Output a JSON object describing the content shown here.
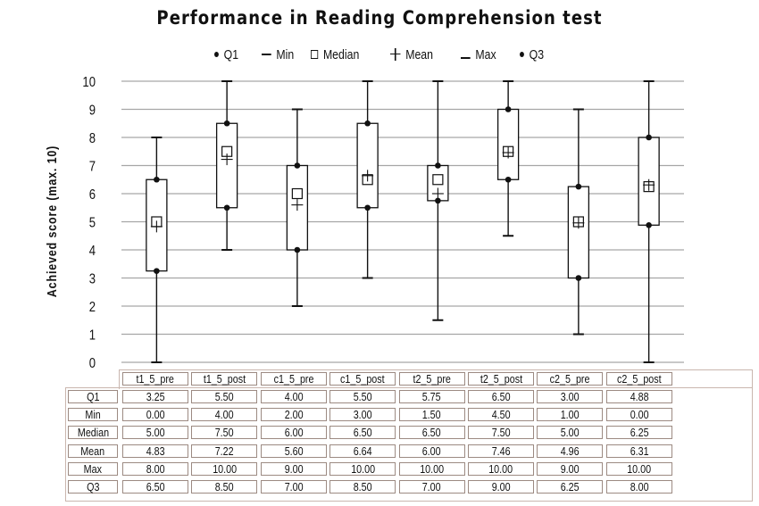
{
  "chart_data": {
    "type": "box",
    "title": "Performance in Reading Comprehension test",
    "xlabel": "",
    "ylabel": "Achieved score (max. 10)",
    "ylim": [
      0,
      10
    ],
    "yticks": [
      0,
      1,
      2,
      3,
      4,
      5,
      6,
      7,
      8,
      9,
      10
    ],
    "grid": true,
    "legend_position": "top",
    "legend": [
      {
        "label": "Q1",
        "symbol": "dot"
      },
      {
        "label": "Min",
        "symbol": "dash"
      },
      {
        "label": "Median",
        "symbol": "square"
      },
      {
        "label": "Mean",
        "symbol": "plus"
      },
      {
        "label": "Max",
        "symbol": "dash"
      },
      {
        "label": "Q3",
        "symbol": "dot"
      }
    ],
    "categories": [
      "t1_5_pre",
      "t1_5_post",
      "c1_5_pre",
      "c1_5_post",
      "t2_5_pre",
      "t2_5_post",
      "c2_5_pre",
      "c2_5_post"
    ],
    "series": [
      {
        "name": "Q1",
        "values": [
          3.25,
          5.5,
          4.0,
          5.5,
          5.75,
          6.5,
          3.0,
          4.88
        ]
      },
      {
        "name": "Min",
        "values": [
          0.0,
          4.0,
          2.0,
          3.0,
          1.5,
          4.5,
          1.0,
          0.0
        ]
      },
      {
        "name": "Median",
        "values": [
          5.0,
          7.5,
          6.0,
          6.5,
          6.5,
          7.5,
          5.0,
          6.25
        ]
      },
      {
        "name": "Mean",
        "values": [
          4.83,
          7.22,
          5.6,
          6.64,
          6.0,
          7.46,
          4.96,
          6.31
        ]
      },
      {
        "name": "Max",
        "values": [
          8.0,
          10.0,
          9.0,
          10.0,
          10.0,
          10.0,
          9.0,
          10.0
        ]
      },
      {
        "name": "Q3",
        "values": [
          6.5,
          8.5,
          7.0,
          8.5,
          7.0,
          9.0,
          6.25,
          8.0
        ]
      }
    ]
  },
  "table": {
    "columns": [
      "t1_5_pre",
      "t1_5_post",
      "c1_5_pre",
      "c1_5_post",
      "t2_5_pre",
      "t2_5_post",
      "c2_5_pre",
      "c2_5_post"
    ],
    "rows": [
      {
        "label": "Q1",
        "cells": [
          "3.25",
          "5.50",
          "4.00",
          "5.50",
          "5.75",
          "6.50",
          "3.00",
          "4.88"
        ]
      },
      {
        "label": "Min",
        "cells": [
          "0.00",
          "4.00",
          "2.00",
          "3.00",
          "1.50",
          "4.50",
          "1.00",
          "0.00"
        ]
      },
      {
        "label": "Median",
        "cells": [
          "5.00",
          "7.50",
          "6.00",
          "6.50",
          "6.50",
          "7.50",
          "5.00",
          "6.25"
        ]
      },
      {
        "label": "Mean",
        "cells": [
          "4.83",
          "7.22",
          "5.60",
          "6.64",
          "6.00",
          "7.46",
          "4.96",
          "6.31"
        ]
      },
      {
        "label": "Max",
        "cells": [
          "8.00",
          "10.00",
          "9.00",
          "10.00",
          "10.00",
          "10.00",
          "9.00",
          "10.00"
        ]
      },
      {
        "label": "Q3",
        "cells": [
          "6.50",
          "8.50",
          "7.00",
          "8.50",
          "7.00",
          "9.00",
          "6.25",
          "8.00"
        ]
      }
    ]
  },
  "colors": {
    "line": "#111111",
    "grid": "#a6a6a6",
    "table_outer_border": "#c9b6ae",
    "table_cell_border": "#9c8a82"
  }
}
